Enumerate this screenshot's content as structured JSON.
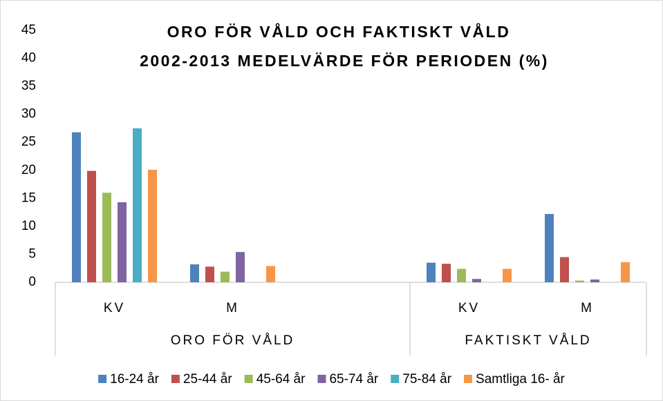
{
  "chart_data": {
    "type": "bar",
    "title": [
      "ORO FÖR VÅLD OCH FAKTISKT VÅLD",
      "2002-2013 MEDELVÄRDE FÖR PERIODEN (%)"
    ],
    "categories": [
      "KV",
      "M",
      null,
      "KV",
      "M"
    ],
    "groups": [
      {
        "name": "ORO FÖR VÅLD",
        "count": 3
      },
      {
        "name": "FAKTISKT VÅLD",
        "count": 2
      }
    ],
    "series": [
      {
        "name": "16-24 år",
        "color": "#4f81bd",
        "values": [
          26.8,
          3.2,
          null,
          3.5,
          12.2
        ]
      },
      {
        "name": "25-44 år",
        "color": "#c0504d",
        "values": [
          19.9,
          2.8,
          null,
          3.3,
          4.5
        ]
      },
      {
        "name": "45-64 år",
        "color": "#9bbb59",
        "values": [
          16.0,
          1.9,
          null,
          2.4,
          0.3
        ]
      },
      {
        "name": "65-74 år",
        "color": "#8064a2",
        "values": [
          14.3,
          5.4,
          null,
          0.6,
          0.5
        ]
      },
      {
        "name": "75-84 år",
        "color": "#4bacc6",
        "values": [
          27.5,
          null,
          null,
          null,
          null
        ]
      },
      {
        "name": "Samtliga 16- år",
        "color": "#f79646",
        "values": [
          20.1,
          2.9,
          null,
          2.4,
          3.6
        ]
      }
    ],
    "ylim": [
      0,
      45
    ],
    "yticks": [
      0,
      5,
      10,
      15,
      20,
      25,
      30,
      35,
      40,
      45
    ],
    "grid": false,
    "legend": "bottom"
  }
}
